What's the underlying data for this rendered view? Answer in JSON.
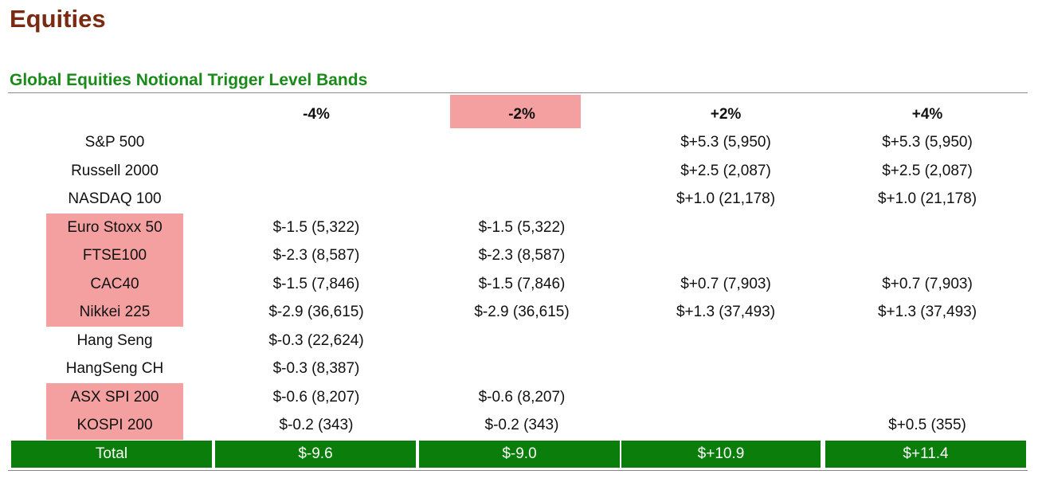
{
  "page": {
    "title": "Equities",
    "section_title": "Global Equities Notional Trigger Level Bands"
  },
  "table": {
    "columns": [
      "",
      "-4%",
      "-2%",
      "+2%",
      "+4%"
    ],
    "highlighted_column": "-2%",
    "rows": [
      {
        "name": "S&P 500",
        "highlight": false,
        "values": [
          "",
          "",
          "$+5.3 (5,950)",
          "$+5.3 (5,950)"
        ]
      },
      {
        "name": "Russell 2000",
        "highlight": false,
        "values": [
          "",
          "",
          "$+2.5 (2,087)",
          "$+2.5 (2,087)"
        ]
      },
      {
        "name": "NASDAQ 100",
        "highlight": false,
        "values": [
          "",
          "",
          "$+1.0 (21,178)",
          "$+1.0 (21,178)"
        ]
      },
      {
        "name": "Euro Stoxx 50",
        "highlight": true,
        "values": [
          "$-1.5 (5,322)",
          "$-1.5 (5,322)",
          "",
          ""
        ]
      },
      {
        "name": "FTSE100",
        "highlight": true,
        "values": [
          "$-2.3 (8,587)",
          "$-2.3 (8,587)",
          "",
          ""
        ]
      },
      {
        "name": "CAC40",
        "highlight": true,
        "values": [
          "$-1.5 (7,846)",
          "$-1.5 (7,846)",
          "$+0.7 (7,903)",
          "$+0.7 (7,903)"
        ]
      },
      {
        "name": "Nikkei 225",
        "highlight": true,
        "values": [
          "$-2.9 (36,615)",
          "$-2.9 (36,615)",
          "$+1.3 (37,493)",
          "$+1.3 (37,493)"
        ]
      },
      {
        "name": "Hang Seng",
        "highlight": false,
        "values": [
          "$-0.3 (22,624)",
          "",
          "",
          ""
        ]
      },
      {
        "name": "HangSeng CH",
        "highlight": false,
        "values": [
          "$-0.3 (8,387)",
          "",
          "",
          ""
        ]
      },
      {
        "name": "ASX SPI 200",
        "highlight": true,
        "values": [
          "$-0.6 (8,207)",
          "$-0.6 (8,207)",
          "",
          ""
        ]
      },
      {
        "name": "KOSPI 200",
        "highlight": true,
        "values": [
          "$-0.2 (343)",
          "$-0.2 (343)",
          "",
          "$+0.5 (355)"
        ]
      }
    ],
    "total": {
      "label": "Total",
      "values": [
        "$-9.6",
        "$-9.0",
        "$+10.9",
        "$+11.4"
      ]
    }
  },
  "colors": {
    "title": "#7b2a12",
    "section_title": "#1a8a1a",
    "highlight": "#f4a0a0",
    "total_bg": "#0a7d0a",
    "total_text": "#ffffff"
  }
}
